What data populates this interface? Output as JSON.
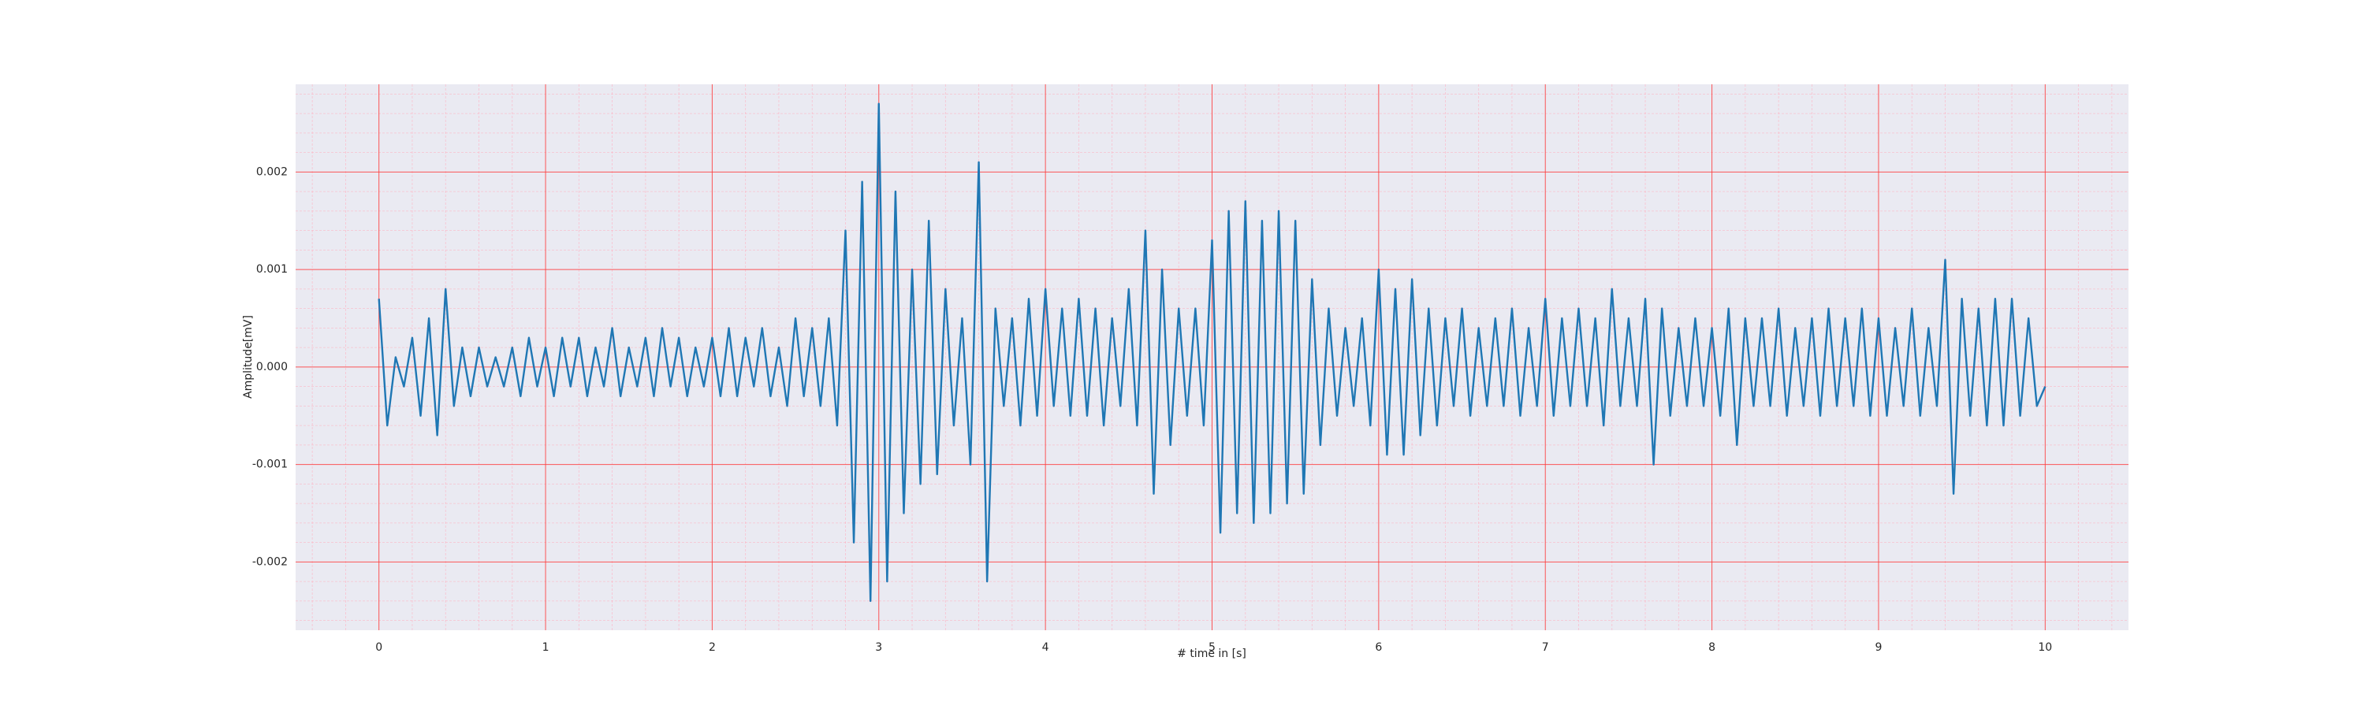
{
  "chart_data": {
    "type": "line",
    "xlabel": "# time in [s]",
    "ylabel": "Amplitude[mV]",
    "x": [
      0,
      0.05,
      0.1,
      0.15,
      0.2,
      0.25,
      0.3,
      0.35,
      0.4,
      0.45,
      0.5,
      0.55,
      0.6,
      0.65,
      0.7,
      0.75,
      0.8,
      0.85,
      0.9,
      0.95,
      1,
      1.05,
      1.1,
      1.15,
      1.2,
      1.25,
      1.3,
      1.35,
      1.4,
      1.45,
      1.5,
      1.55,
      1.6,
      1.65,
      1.7,
      1.75,
      1.8,
      1.85,
      1.9,
      1.95,
      2,
      2.05,
      2.1,
      2.15,
      2.2,
      2.25,
      2.3,
      2.35,
      2.4,
      2.45,
      2.5,
      2.55,
      2.6,
      2.65,
      2.7,
      2.75,
      2.8,
      2.85,
      2.9,
      2.95,
      3,
      3.05,
      3.1,
      3.15,
      3.2,
      3.25,
      3.3,
      3.35,
      3.4,
      3.45,
      3.5,
      3.55,
      3.6,
      3.65,
      3.7,
      3.75,
      3.8,
      3.85,
      3.9,
      3.95,
      4,
      4.05,
      4.1,
      4.15,
      4.2,
      4.25,
      4.3,
      4.35,
      4.4,
      4.45,
      4.5,
      4.55,
      4.6,
      4.65,
      4.7,
      4.75,
      4.8,
      4.85,
      4.9,
      4.95,
      5,
      5.05,
      5.1,
      5.15,
      5.2,
      5.25,
      5.3,
      5.35,
      5.4,
      5.45,
      5.5,
      5.55,
      5.6,
      5.65,
      5.7,
      5.75,
      5.8,
      5.85,
      5.9,
      5.95,
      6,
      6.05,
      6.1,
      6.15,
      6.2,
      6.25,
      6.3,
      6.35,
      6.4,
      6.45,
      6.5,
      6.55,
      6.6,
      6.65,
      6.7,
      6.75,
      6.8,
      6.85,
      6.9,
      6.95,
      7,
      7.05,
      7.1,
      7.15,
      7.2,
      7.25,
      7.3,
      7.35,
      7.4,
      7.45,
      7.5,
      7.55,
      7.6,
      7.65,
      7.7,
      7.75,
      7.8,
      7.85,
      7.9,
      7.95,
      8,
      8.05,
      8.1,
      8.15,
      8.2,
      8.25,
      8.3,
      8.35,
      8.4,
      8.45,
      8.5,
      8.55,
      8.6,
      8.65,
      8.7,
      8.75,
      8.8,
      8.85,
      8.9,
      8.95,
      9,
      9.05,
      9.1,
      9.15,
      9.2,
      9.25,
      9.3,
      9.35,
      9.4,
      9.45,
      9.5,
      9.55,
      9.6,
      9.65,
      9.7,
      9.75,
      9.8,
      9.85,
      9.9,
      9.95,
      10
    ],
    "values": [
      0.0007,
      -0.0006,
      0.0001,
      -0.0002,
      0.0003,
      -0.0005,
      0.0005,
      -0.0007,
      0.0008,
      -0.0004,
      0.0002,
      -0.0003,
      0.0002,
      -0.0002,
      0.0001,
      -0.0002,
      0.0002,
      -0.0003,
      0.0003,
      -0.0002,
      0.0002,
      -0.0003,
      0.0003,
      -0.0002,
      0.0003,
      -0.0003,
      0.0002,
      -0.0002,
      0.0004,
      -0.0003,
      0.0002,
      -0.0002,
      0.0003,
      -0.0003,
      0.0004,
      -0.0002,
      0.0003,
      -0.0003,
      0.0002,
      -0.0002,
      0.0003,
      -0.0003,
      0.0004,
      -0.0003,
      0.0003,
      -0.0002,
      0.0004,
      -0.0003,
      0.0002,
      -0.0004,
      0.0005,
      -0.0003,
      0.0004,
      -0.0004,
      0.0005,
      -0.0006,
      0.0014,
      -0.0018,
      0.0019,
      -0.0024,
      0.0027,
      -0.0022,
      0.0018,
      -0.0015,
      0.001,
      -0.0012,
      0.0015,
      -0.0011,
      0.0008,
      -0.0006,
      0.0005,
      -0.001,
      0.0021,
      -0.0022,
      0.0006,
      -0.0004,
      0.0005,
      -0.0006,
      0.0007,
      -0.0005,
      0.0008,
      -0.0004,
      0.0006,
      -0.0005,
      0.0007,
      -0.0005,
      0.0006,
      -0.0006,
      0.0005,
      -0.0004,
      0.0008,
      -0.0006,
      0.0014,
      -0.0013,
      0.001,
      -0.0008,
      0.0006,
      -0.0005,
      0.0006,
      -0.0006,
      0.0013,
      -0.0017,
      0.0016,
      -0.0015,
      0.0017,
      -0.0016,
      0.0015,
      -0.0015,
      0.0016,
      -0.0014,
      0.0015,
      -0.0013,
      0.0009,
      -0.0008,
      0.0006,
      -0.0005,
      0.0004,
      -0.0004,
      0.0005,
      -0.0006,
      0.001,
      -0.0009,
      0.0008,
      -0.0009,
      0.0009,
      -0.0007,
      0.0006,
      -0.0006,
      0.0005,
      -0.0004,
      0.0006,
      -0.0005,
      0.0004,
      -0.0004,
      0.0005,
      -0.0004,
      0.0006,
      -0.0005,
      0.0004,
      -0.0004,
      0.0007,
      -0.0005,
      0.0005,
      -0.0004,
      0.0006,
      -0.0004,
      0.0005,
      -0.0006,
      0.0008,
      -0.0004,
      0.0005,
      -0.0004,
      0.0007,
      -0.001,
      0.0006,
      -0.0005,
      0.0004,
      -0.0004,
      0.0005,
      -0.0004,
      0.0004,
      -0.0005,
      0.0006,
      -0.0008,
      0.0005,
      -0.0004,
      0.0005,
      -0.0004,
      0.0006,
      -0.0005,
      0.0004,
      -0.0004,
      0.0005,
      -0.0005,
      0.0006,
      -0.0004,
      0.0005,
      -0.0004,
      0.0006,
      -0.0005,
      0.0005,
      -0.0005,
      0.0004,
      -0.0004,
      0.0006,
      -0.0005,
      0.0004,
      -0.0004,
      0.0011,
      -0.0013,
      0.0007,
      -0.0005,
      0.0006,
      -0.0006,
      0.0007,
      -0.0006,
      0.0007,
      -0.0005,
      0.0005,
      -0.0004,
      -0.0002
    ],
    "color": "#1f77b4",
    "xlim": [
      -0.5,
      10.5
    ],
    "xticks": [
      0,
      1,
      2,
      3,
      4,
      5,
      6,
      7,
      8,
      9,
      10
    ],
    "ylim": [
      -0.0027,
      0.0029
    ],
    "yticks": [
      -0.002,
      -0.001,
      {
        "value": 0,
        "label": "0.000"
      },
      0.001,
      0.002
    ],
    "grid": true,
    "minor_grid": true
  }
}
